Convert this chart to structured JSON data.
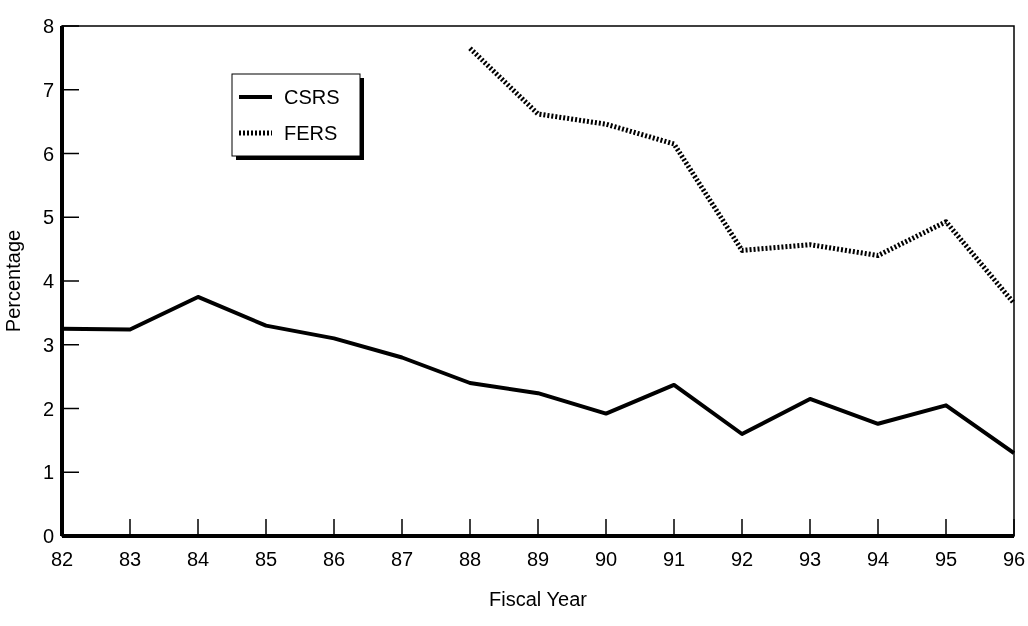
{
  "chart_data": {
    "type": "line",
    "xlabel": "Fiscal Year",
    "ylabel": "Percentage",
    "xlim": [
      82,
      96
    ],
    "xticks": [
      82,
      83,
      84,
      85,
      86,
      87,
      88,
      89,
      90,
      91,
      92,
      93,
      94,
      95,
      96
    ],
    "ylim": [
      0,
      8
    ],
    "yticks": [
      0,
      1,
      2,
      3,
      4,
      5,
      6,
      7,
      8
    ],
    "series": [
      {
        "name": "CSRS",
        "color": "#000000",
        "line_style": "solid",
        "x": [
          82,
          83,
          84,
          85,
          86,
          87,
          88,
          89,
          90,
          91,
          92,
          93,
          94,
          95,
          96
        ],
        "values": [
          3.25,
          3.24,
          3.75,
          3.3,
          3.1,
          2.8,
          2.4,
          2.24,
          1.92,
          2.37,
          1.6,
          2.15,
          1.76,
          2.05,
          1.3
        ]
      },
      {
        "name": "FERS",
        "color": "#000000",
        "line_style": "dotted",
        "x": [
          88,
          89,
          90,
          91,
          92,
          93,
          94,
          95,
          96
        ],
        "values": [
          7.65,
          6.62,
          6.46,
          6.15,
          4.48,
          4.57,
          4.4,
          4.93,
          3.65
        ]
      }
    ],
    "legend": "top left",
    "grid": false,
    "marker": "none"
  }
}
